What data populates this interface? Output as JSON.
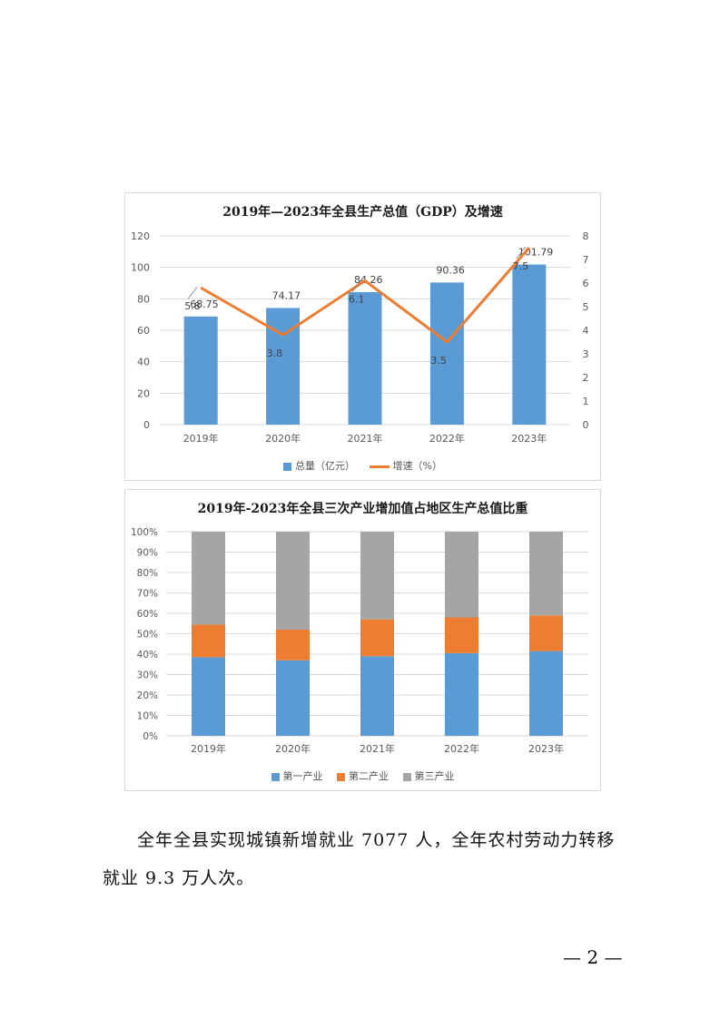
{
  "chart_data": [
    {
      "type": "bar",
      "title": "2019年—2023年全县生产总值（GDP）及增速",
      "categories": [
        "2019年",
        "2020年",
        "2021年",
        "2022年",
        "2023年"
      ],
      "series": [
        {
          "name": "总量（亿元）",
          "type": "bar",
          "axis": "left",
          "values": [
            68.75,
            74.17,
            84.26,
            90.36,
            101.79
          ],
          "color": "#5b9bd5"
        },
        {
          "name": "增速（%）",
          "type": "line",
          "axis": "right",
          "values": [
            5.8,
            3.8,
            6.1,
            3.5,
            7.5
          ],
          "color": "#ed7d31"
        }
      ],
      "data_labels_bar": [
        "68.75",
        "74.17",
        "84.26",
        "90.36",
        "101.79"
      ],
      "data_labels_line": [
        "5.8",
        "3.8",
        "6.1",
        "3.5",
        "7.5"
      ],
      "ylim": [
        0,
        120
      ],
      "yticks": [
        "0",
        "20",
        "40",
        "60",
        "80",
        "100",
        "120"
      ],
      "y2lim": [
        0,
        8
      ],
      "y2ticks": [
        "0",
        "1",
        "2",
        "3",
        "4",
        "5",
        "6",
        "7",
        "8"
      ],
      "grid": true,
      "legend": "bottom"
    },
    {
      "type": "bar",
      "stacked": "percent",
      "title": "2019年-2023年全县三次产业增加值占地区生产总值比重",
      "categories": [
        "2019年",
        "2020年",
        "2021年",
        "2022年",
        "2023年"
      ],
      "series": [
        {
          "name": "第一产业",
          "values": [
            38.5,
            37.0,
            39.0,
            40.5,
            41.5
          ],
          "color": "#5b9bd5"
        },
        {
          "name": "第二产业",
          "values": [
            16.0,
            15.0,
            18.0,
            17.5,
            17.5
          ],
          "color": "#ed7d31"
        },
        {
          "name": "第三产业",
          "values": [
            45.5,
            48.0,
            43.0,
            42.0,
            41.0
          ],
          "color": "#a5a5a5"
        }
      ],
      "ylim": [
        0,
        100
      ],
      "yticks": [
        "0%",
        "10%",
        "20%",
        "30%",
        "40%",
        "50%",
        "60%",
        "70%",
        "80%",
        "90%",
        "100%"
      ],
      "grid": true,
      "legend": "bottom"
    }
  ],
  "body": {
    "paragraph": "全年全县实现城镇新增就业 7077 人，全年农村劳动力转移就业 9.3 万人次。"
  },
  "footer": {
    "page_number": "— 2 —"
  }
}
